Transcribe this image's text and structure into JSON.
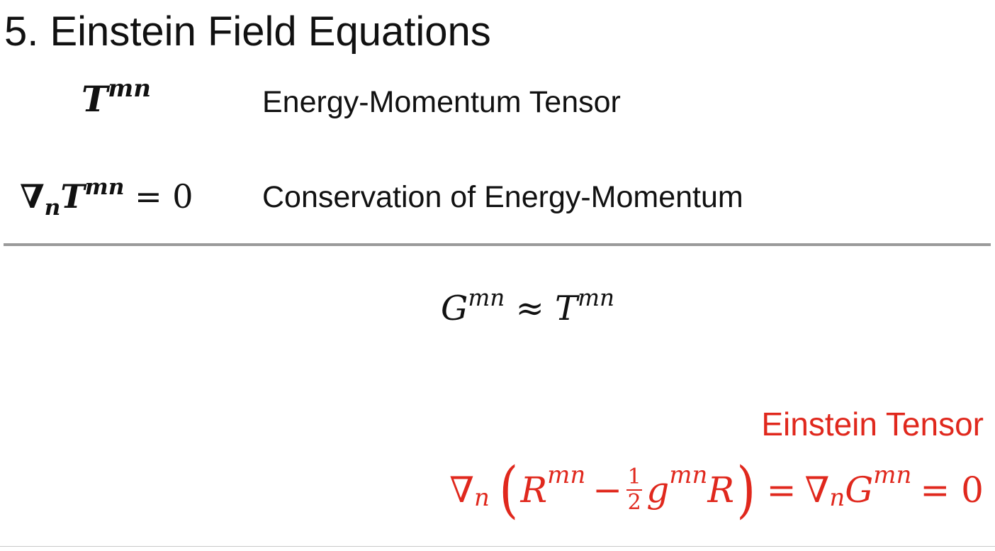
{
  "title": "5. Einstein Field Equations",
  "rows": [
    {
      "symbol": {
        "base": "T",
        "superscript": "mn"
      },
      "description": "Energy-Momentum Tensor"
    },
    {
      "symbol": {
        "nabla": "∇",
        "nabla_sub": "n",
        "base": "T",
        "superscript": "mn",
        "rhs": "= 0"
      },
      "description": "Conservation of Energy-Momentum"
    }
  ],
  "relation": {
    "lhs": "G",
    "lhs_sup": "mn",
    "op": "≈",
    "rhs": "T",
    "rhs_sup": "mn"
  },
  "einstein": {
    "label": "Einstein Tensor",
    "nabla": "∇",
    "nabla_sub": "n",
    "open_paren": "(",
    "R": "R",
    "R_sup": "mn",
    "minus": "−",
    "frac_num": "1",
    "frac_den": "2",
    "g": "g",
    "g_sup": "mn",
    "R_scalar": "R",
    "close_paren": ")",
    "eq1": "=",
    "nabla2": "∇",
    "nabla2_sub": "n",
    "G": "G",
    "G_sup": "mn",
    "eq2": "= 0"
  },
  "colors": {
    "accent_red": "#e0281d",
    "divider": "#9a9a9a",
    "text": "#111111"
  }
}
